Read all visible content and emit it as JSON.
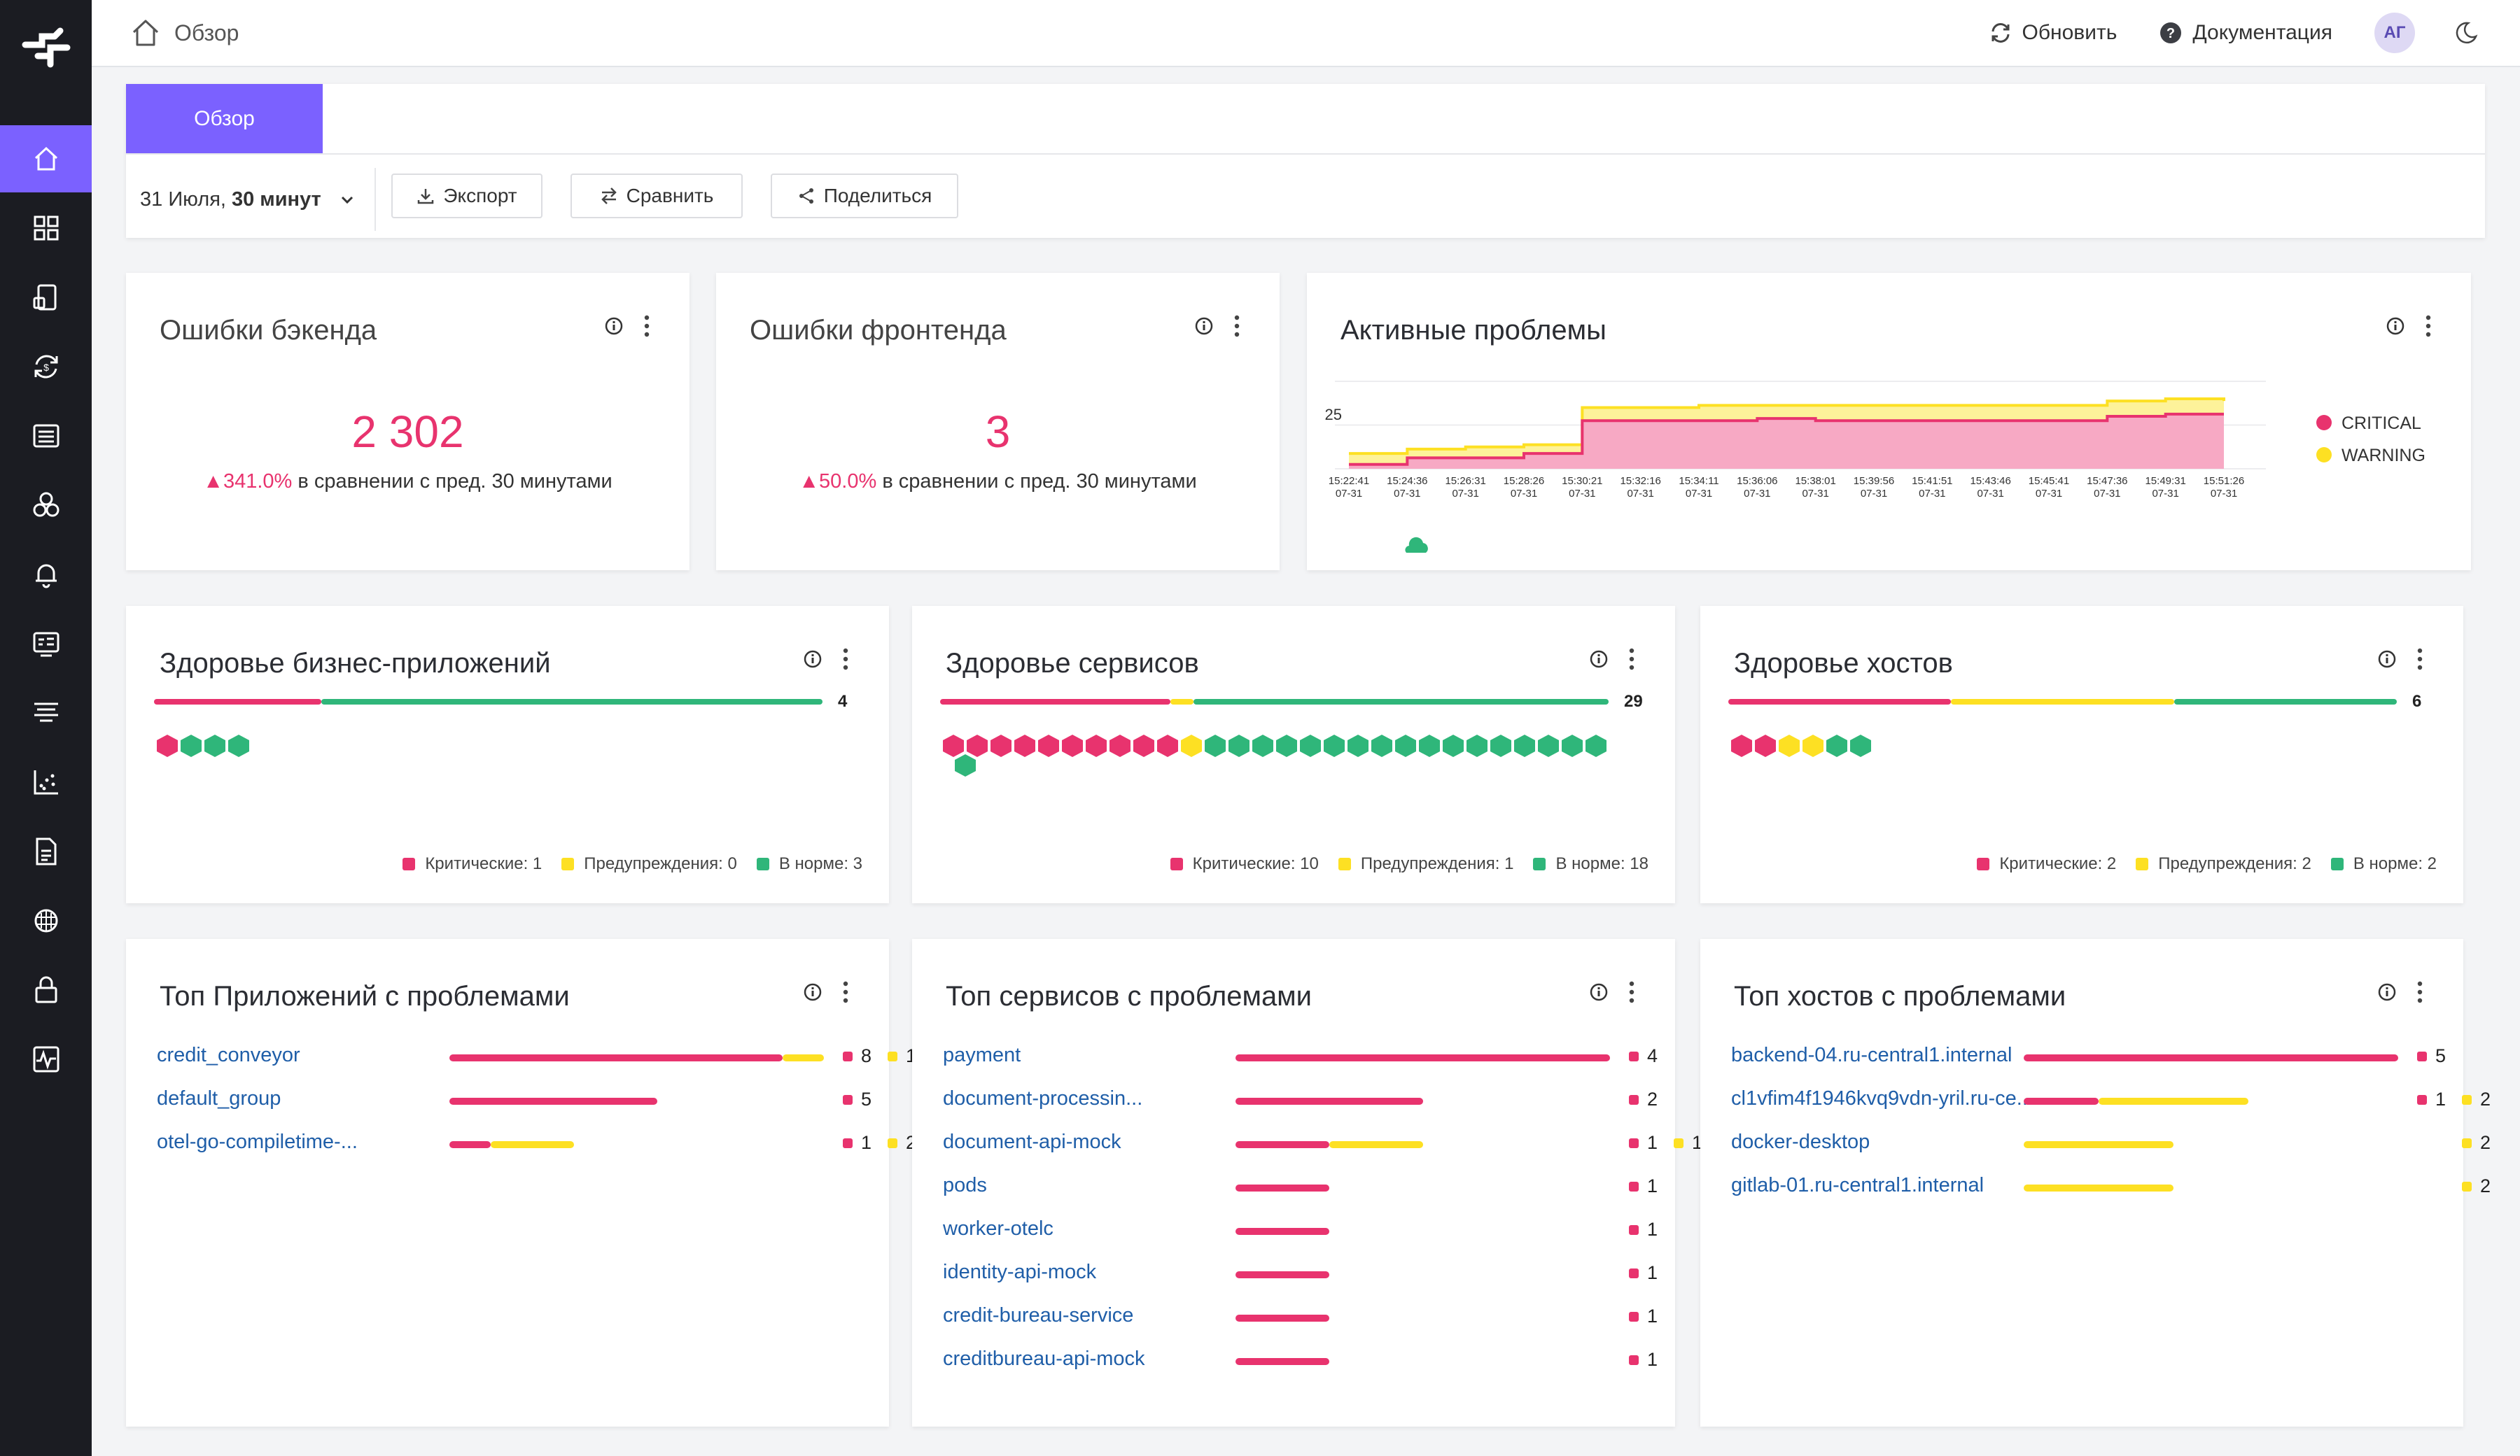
{
  "topbar": {
    "crumb": "Обзор",
    "refresh": "Обновить",
    "docs": "Документация",
    "avatar": "АГ"
  },
  "sidebar": {
    "items": [
      "home-icon",
      "grid-icon",
      "services-icon",
      "sync-icon",
      "list-icon",
      "hosts-icon",
      "bell-icon",
      "monitor-icon",
      "stack-icon",
      "scatter-icon",
      "document-icon",
      "brain-icon",
      "lock-icon",
      "pulse-icon"
    ]
  },
  "controls": {
    "tab": "Обзор",
    "date": "31 Июля,",
    "range": "30 минут",
    "export": "Экспорт",
    "compare": "Сравнить",
    "share": "Поделиться"
  },
  "colors": {
    "accent": "#7b61ff",
    "critical": "#e8336e",
    "warning": "#fde023",
    "ok": "#2fb67a",
    "link": "#1f5ea8"
  },
  "backend_errors": {
    "title": "Ошибки бэкенда",
    "value": "2 302",
    "delta": "341.0%",
    "compare": " в сравнении с пред. 30 минутами"
  },
  "frontend_errors": {
    "title": "Ошибки фронтенда",
    "value": "3",
    "delta": "50.0%",
    "compare": " в сравнении с пред. 30 минутами"
  },
  "active_problems": {
    "title": "Активные проблемы",
    "ytick": "25",
    "legend": [
      "CRITICAL",
      "WARNING"
    ],
    "chart_data": {
      "type": "area",
      "x": [
        "15:22:41",
        "15:24:36",
        "15:26:31",
        "15:28:26",
        "15:30:21",
        "15:32:16",
        "15:34:11",
        "15:36:06",
        "15:38:01",
        "15:39:56",
        "15:41:51",
        "15:43:46",
        "15:45:41",
        "15:47:36",
        "15:49:31",
        "15:51:26"
      ],
      "x_date": "07-31",
      "series": [
        {
          "name": "CRITICAL",
          "values": [
            2,
            5,
            5,
            7,
            22,
            22,
            22,
            23,
            22,
            22,
            22,
            22,
            22,
            24,
            25,
            25
          ]
        },
        {
          "name": "WARNING",
          "values": [
            7,
            9,
            10,
            11,
            28,
            28,
            29,
            29,
            29,
            29,
            29,
            29,
            29,
            31,
            32,
            31
          ]
        }
      ],
      "ylim": [
        0,
        40
      ]
    }
  },
  "business_health": {
    "title": "Здоровье бизнес-приложений",
    "total": "4",
    "counts": {
      "critical": 1,
      "warning": 0,
      "ok": 3
    },
    "legend": {
      "critical": "Критические: 1",
      "warning": "Предупреждения: 0",
      "ok": "В норме: 3"
    }
  },
  "services_health": {
    "title": "Здоровье сервисов",
    "total": "29",
    "counts": {
      "critical": 10,
      "warning": 1,
      "ok": 18
    },
    "legend": {
      "critical": "Критические: 10",
      "warning": "Предупреждения: 1",
      "ok": "В норме: 18"
    }
  },
  "hosts_health": {
    "title": "Здоровье хостов",
    "total": "6",
    "counts": {
      "critical": 2,
      "warning": 2,
      "ok": 2
    },
    "legend": {
      "critical": "Критические: 2",
      "warning": "Предупреждения: 2",
      "ok": "В норме: 2"
    }
  },
  "top_apps": {
    "title": "Топ Приложений с проблемами",
    "rows": [
      {
        "name": "credit_conveyor",
        "critical": 8,
        "warning": 1
      },
      {
        "name": "default_group",
        "critical": 5,
        "warning": 0
      },
      {
        "name": "otel-go-compiletime-...",
        "critical": 1,
        "warning": 2
      }
    ]
  },
  "top_services": {
    "title": "Топ сервисов с проблемами",
    "rows": [
      {
        "name": "payment",
        "critical": 4,
        "warning": 0
      },
      {
        "name": "document-processin...",
        "critical": 2,
        "warning": 0
      },
      {
        "name": "document-api-mock",
        "critical": 1,
        "warning": 1
      },
      {
        "name": "pods",
        "critical": 1,
        "warning": 0
      },
      {
        "name": "worker-otelc",
        "critical": 1,
        "warning": 0
      },
      {
        "name": "identity-api-mock",
        "critical": 1,
        "warning": 0
      },
      {
        "name": "credit-bureau-service",
        "critical": 1,
        "warning": 0
      },
      {
        "name": "creditbureau-api-mock",
        "critical": 1,
        "warning": 0
      }
    ]
  },
  "top_hosts": {
    "title": "Топ хостов с проблемами",
    "rows": [
      {
        "name": "backend-04.ru-central1.internal",
        "critical": 5,
        "warning": 0
      },
      {
        "name": "cl1vfim4f1946kvq9vdn-yril.ru-ce...",
        "critical": 1,
        "warning": 2
      },
      {
        "name": "docker-desktop",
        "critical": 0,
        "warning": 2
      },
      {
        "name": "gitlab-01.ru-central1.internal",
        "critical": 0,
        "warning": 2
      }
    ]
  }
}
